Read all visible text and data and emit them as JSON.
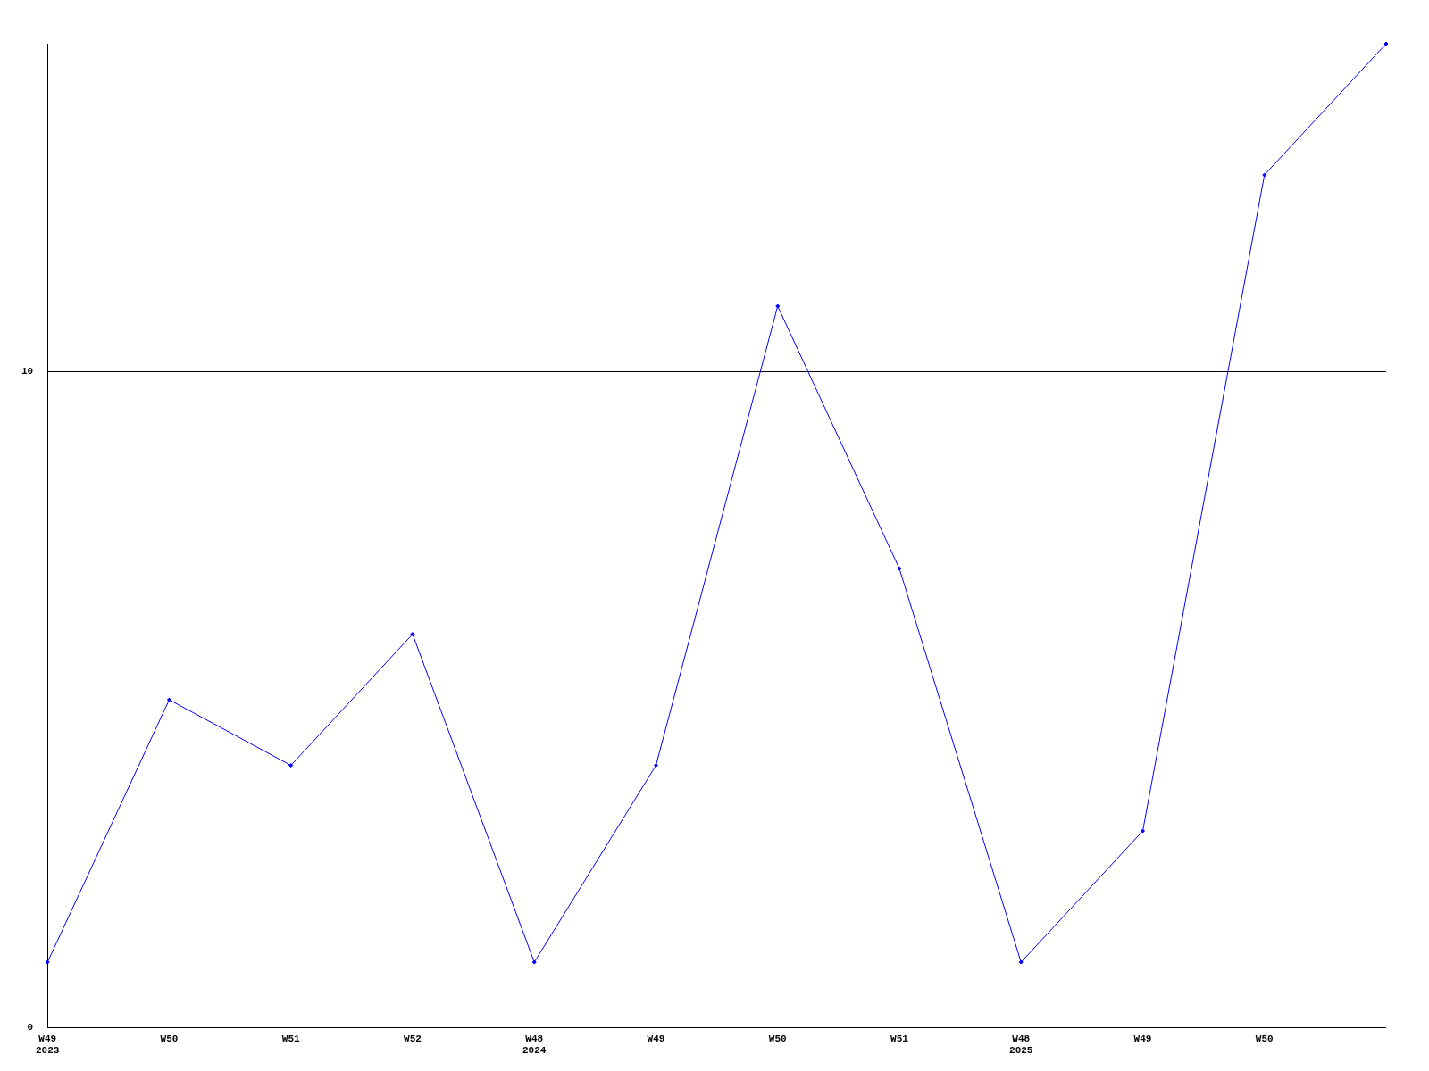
{
  "chart_data": {
    "type": "line",
    "categories": [
      "W49\n2023",
      "W50",
      "W51",
      "W52",
      "W48\n2024",
      "W49",
      "W50",
      "W51",
      "W48\n2025",
      "W49",
      "W50",
      null
    ],
    "series": [
      {
        "color": "#0000ff",
        "values": [
          1,
          5,
          4,
          6,
          1,
          4,
          11,
          7,
          1,
          3,
          13,
          15
        ]
      }
    ],
    "ylim": [
      0,
      15
    ],
    "yticks": [
      0,
      10
    ],
    "grid": "y",
    "legend": false,
    "marker": "diamond",
    "line_style": "solid"
  }
}
